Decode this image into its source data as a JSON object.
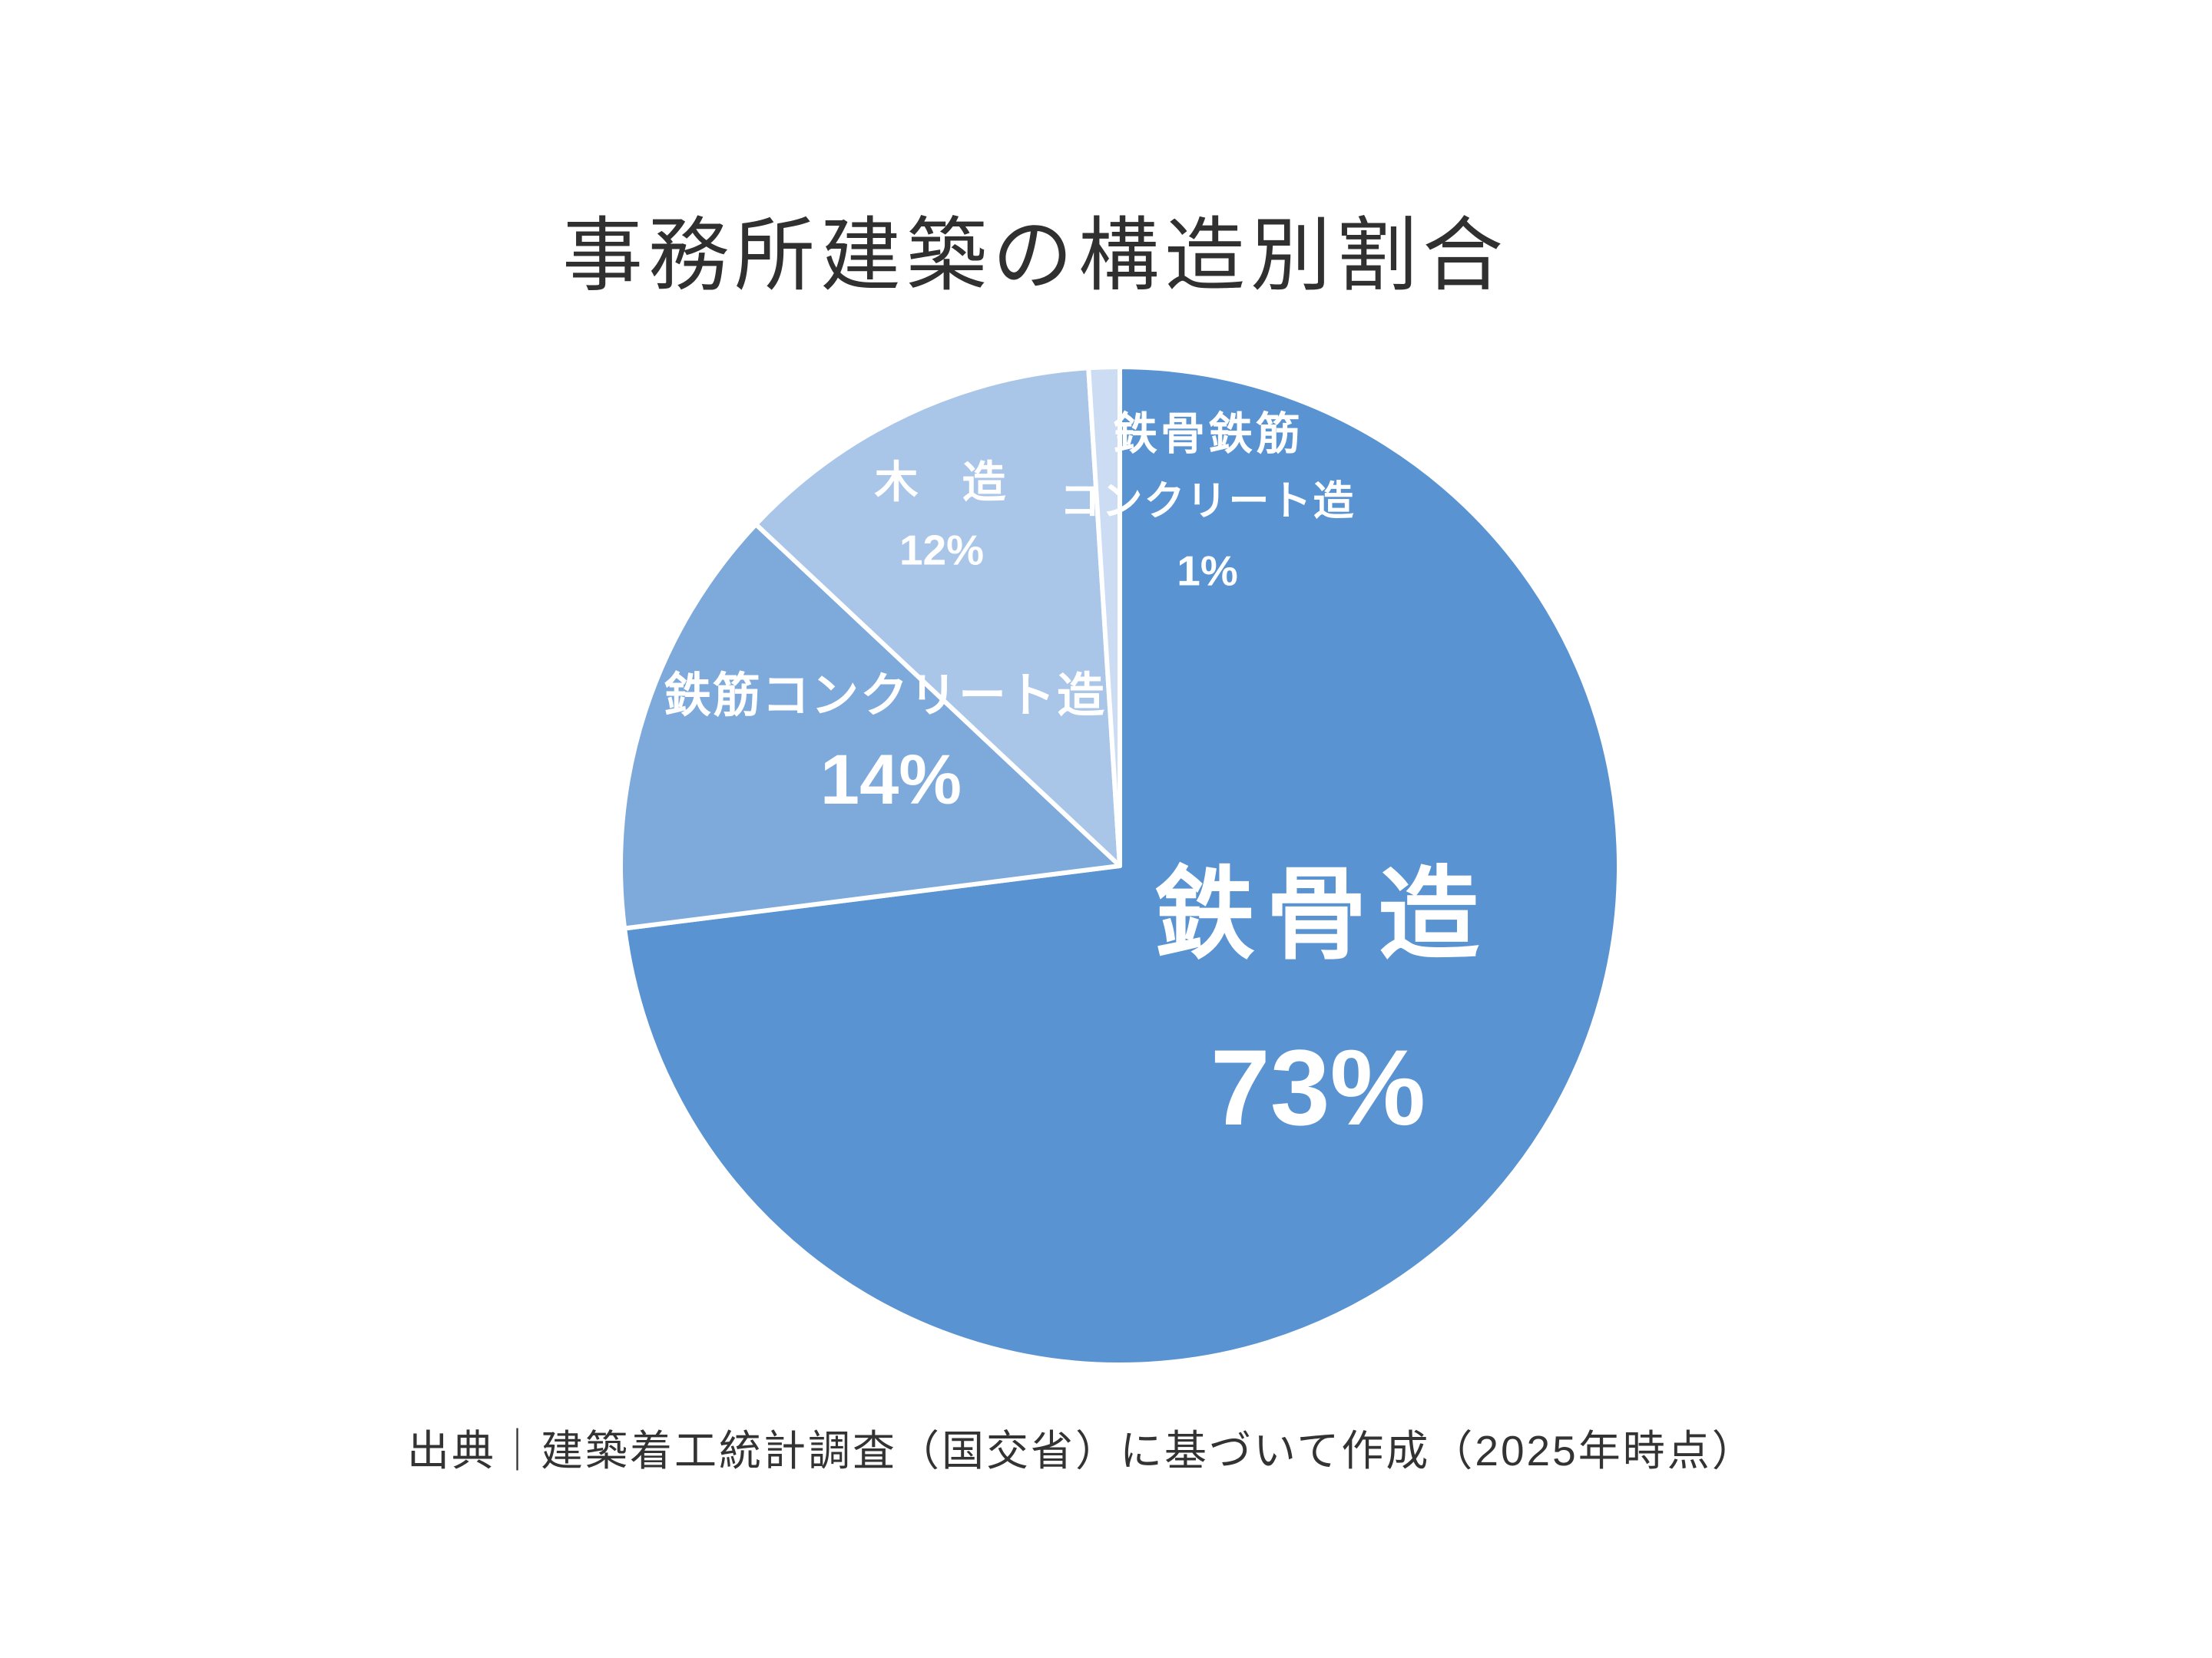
{
  "page": {
    "background_color": "#ffffff"
  },
  "title": {
    "text": "事務所建築の構造別割合",
    "color": "#303030"
  },
  "footer": {
    "text": "出典｜建築着工統計調査（国交省）に基づいて作成（2025年時点）",
    "color": "#333333"
  },
  "chart_data": {
    "type": "pie",
    "title": "事務所建築の構造別割合",
    "unit": "%",
    "start_angle_deg": 0,
    "direction": "clockwise",
    "border_color": "#ffffff",
    "label_color": "#ffffff",
    "categories": [
      "鉄骨造",
      "鉄筋コンクリート造",
      "木造",
      "鉄骨鉄筋コンクリート造"
    ],
    "values": [
      73,
      14,
      12,
      1
    ],
    "slices": [
      {
        "name": "鉄骨造",
        "value": 73,
        "color": "#5a93d1",
        "label": "鉄骨造",
        "pct_label": "73%"
      },
      {
        "name": "鉄筋コンクリート造",
        "value": 14,
        "color": "#7ea9db",
        "label": "鉄筋コンクリート造",
        "pct_label": "14%"
      },
      {
        "name": "木造",
        "value": 12,
        "color": "#a9c6e9",
        "label": "木　造",
        "pct_label": "12%"
      },
      {
        "name": "鉄骨鉄筋コンクリート造",
        "value": 1,
        "color": "#ccdcf2",
        "label_line1": "鉄骨鉄筋",
        "label_line2": "コンクリート造",
        "pct_label": "1%"
      }
    ],
    "source_note": "出典｜建築着工統計調査（国交省）に基づいて作成（2025年時点）"
  }
}
